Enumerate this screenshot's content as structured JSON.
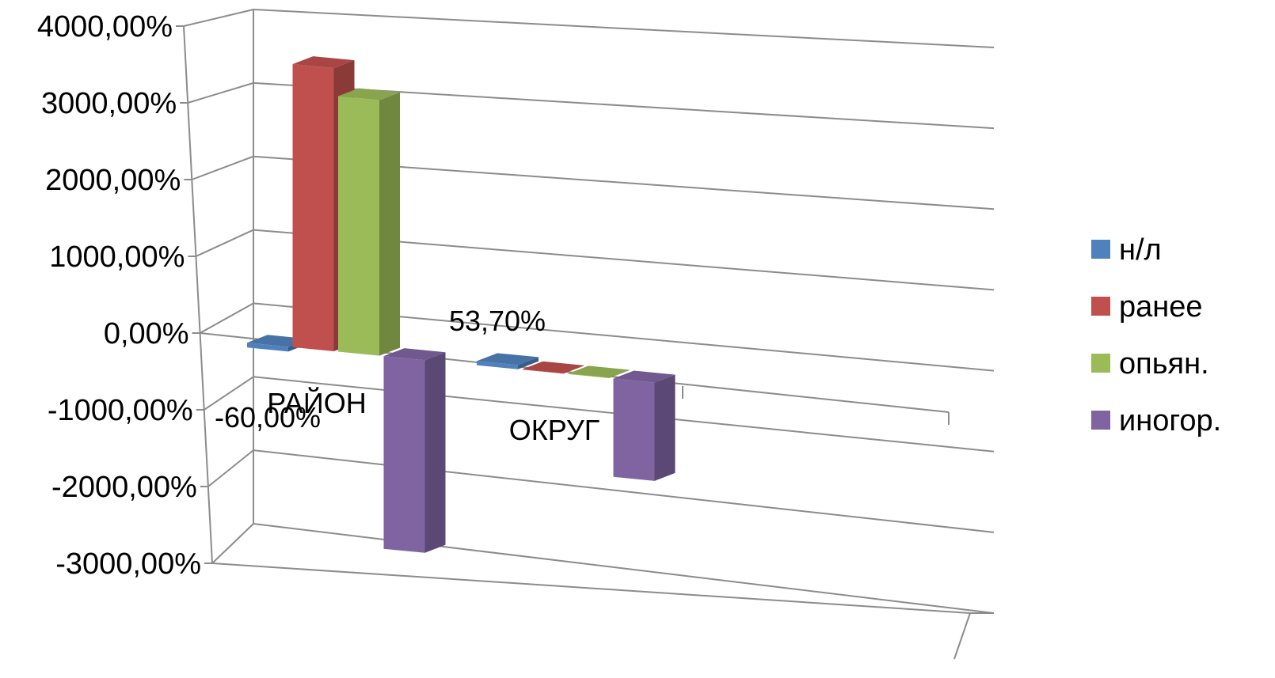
{
  "chart_data": {
    "type": "bar",
    "style": "3d-clustered-column",
    "categories": [
      "РАЙОН",
      "ОКРУГ"
    ],
    "series": [
      {
        "name": "н/л",
        "color": "#4F81BD",
        "values": [
          -60,
          53.7
        ]
      },
      {
        "name": "ранее",
        "color": "#C0504D",
        "values": [
          3600,
          5
        ]
      },
      {
        "name": "опьян.",
        "color": "#9BBB59",
        "values": [
          3250,
          5
        ]
      },
      {
        "name": "иногор.",
        "color": "#8064A2",
        "values": [
          -2450,
          -1250
        ]
      }
    ],
    "y_ticks": [
      "4000,00%",
      "3000,00%",
      "2000,00%",
      "1000,00%",
      "0,00%",
      "-1000,00%",
      "-2000,00%",
      "-3000,00%"
    ],
    "y_tick_values": [
      4000,
      3000,
      2000,
      1000,
      0,
      -1000,
      -2000,
      -3000
    ],
    "ylim": [
      -3000,
      4000
    ],
    "data_labels": [
      {
        "category": "РАЙОН",
        "series": "н/л",
        "text": "-60,00%"
      },
      {
        "category": "ОКРУГ",
        "series": "н/л",
        "text": "53,70%"
      }
    ],
    "grid": true,
    "legend_position": "right",
    "title": "",
    "xlabel": "",
    "ylabel": ""
  }
}
